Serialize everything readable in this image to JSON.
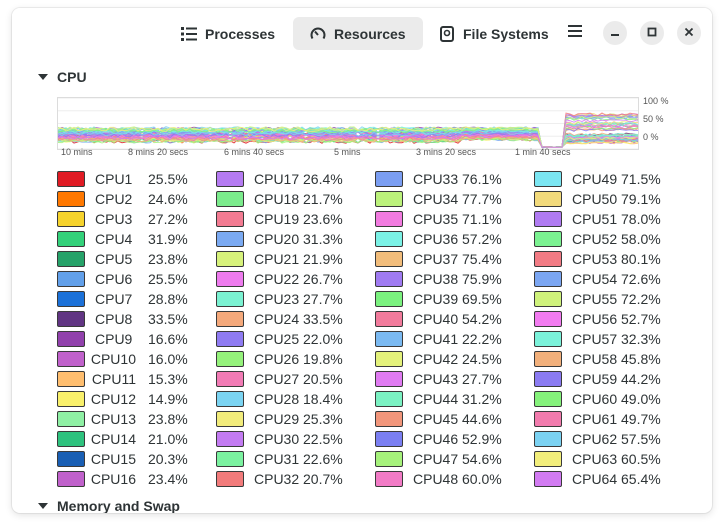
{
  "header": {
    "tabs": [
      {
        "label": "Processes",
        "icon": "list-icon"
      },
      {
        "label": "Resources",
        "icon": "speedometer-icon",
        "active": true
      },
      {
        "label": "File Systems",
        "icon": "disk-icon"
      }
    ],
    "menu_icon": "hamburger-menu-icon",
    "window_buttons": [
      "minimize-icon",
      "maximize-icon",
      "close-icon"
    ]
  },
  "cpu_section": {
    "title": "CPU",
    "y_ticks": [
      "100 %",
      "50 %",
      "0 %"
    ],
    "x_ticks": [
      "10 mins",
      "8 mins 20 secs",
      "6 mins 40 secs",
      "5 mins",
      "3 mins 20 secs",
      "1 min 40 secs"
    ],
    "cpus": [
      {
        "name": "CPU1",
        "value": "25.5%",
        "color": "#e01b24"
      },
      {
        "name": "CPU2",
        "value": "24.6%",
        "color": "#ff7800"
      },
      {
        "name": "CPU3",
        "value": "27.2%",
        "color": "#f6d32d"
      },
      {
        "name": "CPU4",
        "value": "31.9%",
        "color": "#33d17a"
      },
      {
        "name": "CPU5",
        "value": "23.8%",
        "color": "#26a269"
      },
      {
        "name": "CPU6",
        "value": "25.5%",
        "color": "#62a0ea"
      },
      {
        "name": "CPU7",
        "value": "28.8%",
        "color": "#1c71d8"
      },
      {
        "name": "CPU8",
        "value": "33.5%",
        "color": "#613583"
      },
      {
        "name": "CPU9",
        "value": "16.6%",
        "color": "#9141ac"
      },
      {
        "name": "CPU10",
        "value": "16.0%",
        "color": "#c061cb"
      },
      {
        "name": "CPU11",
        "value": "15.3%",
        "color": "#ffbe6f"
      },
      {
        "name": "CPU12",
        "value": "14.9%",
        "color": "#f9f06b"
      },
      {
        "name": "CPU13",
        "value": "23.8%",
        "color": "#8ff0a4"
      },
      {
        "name": "CPU14",
        "value": "21.0%",
        "color": "#2ec27e"
      },
      {
        "name": "CPU15",
        "value": "20.3%",
        "color": "#1a5fb4"
      },
      {
        "name": "CPU16",
        "value": "23.4%",
        "color": "#c061cb"
      },
      {
        "name": "CPU17",
        "value": "26.4%",
        "color": "#b57bf2"
      },
      {
        "name": "CPU18",
        "value": "21.7%",
        "color": "#7beb8c"
      },
      {
        "name": "CPU19",
        "value": "23.6%",
        "color": "#f37b92"
      },
      {
        "name": "CPU20",
        "value": "31.3%",
        "color": "#7baaf2"
      },
      {
        "name": "CPU21",
        "value": "21.9%",
        "color": "#d7f27b"
      },
      {
        "name": "CPU22",
        "value": "26.7%",
        "color": "#ee7bee"
      },
      {
        "name": "CPU23",
        "value": "27.7%",
        "color": "#7bf2d2"
      },
      {
        "name": "CPU24",
        "value": "33.5%",
        "color": "#f5a97b"
      },
      {
        "name": "CPU25",
        "value": "22.0%",
        "color": "#8f7bf2"
      },
      {
        "name": "CPU26",
        "value": "19.8%",
        "color": "#95f27b"
      },
      {
        "name": "CPU27",
        "value": "20.5%",
        "color": "#f27bb5"
      },
      {
        "name": "CPU28",
        "value": "18.4%",
        "color": "#7bd4f2"
      },
      {
        "name": "CPU29",
        "value": "25.3%",
        "color": "#f2ec7b"
      },
      {
        "name": "CPU30",
        "value": "22.5%",
        "color": "#c37bf2"
      },
      {
        "name": "CPU31",
        "value": "22.6%",
        "color": "#7bf2a0"
      },
      {
        "name": "CPU32",
        "value": "20.7%",
        "color": "#f27b7b"
      },
      {
        "name": "CPU33",
        "value": "76.1%",
        "color": "#7b9ef2"
      },
      {
        "name": "CPU34",
        "value": "77.7%",
        "color": "#bcf27b"
      },
      {
        "name": "CPU35",
        "value": "71.1%",
        "color": "#f27be0"
      },
      {
        "name": "CPU36",
        "value": "57.2%",
        "color": "#7bf2e6"
      },
      {
        "name": "CPU37",
        "value": "75.4%",
        "color": "#f2bd7b"
      },
      {
        "name": "CPU38",
        "value": "75.9%",
        "color": "#a07bf2"
      },
      {
        "name": "CPU39",
        "value": "69.5%",
        "color": "#7bf27f"
      },
      {
        "name": "CPU40",
        "value": "54.2%",
        "color": "#f27b9c"
      },
      {
        "name": "CPU41",
        "value": "22.2%",
        "color": "#7bbaf2"
      },
      {
        "name": "CPU42",
        "value": "24.5%",
        "color": "#e4f27b"
      },
      {
        "name": "CPU43",
        "value": "27.7%",
        "color": "#e07bf2"
      },
      {
        "name": "CPU44",
        "value": "31.2%",
        "color": "#7bf2c3"
      },
      {
        "name": "CPU45",
        "value": "44.6%",
        "color": "#f2967b"
      },
      {
        "name": "CPU46",
        "value": "52.9%",
        "color": "#7b7ff2"
      },
      {
        "name": "CPU47",
        "value": "54.6%",
        "color": "#a6f27b"
      },
      {
        "name": "CPU48",
        "value": "60.0%",
        "color": "#f27bc6"
      },
      {
        "name": "CPU49",
        "value": "71.5%",
        "color": "#7be6f2"
      },
      {
        "name": "CPU50",
        "value": "79.1%",
        "color": "#f2da7b"
      },
      {
        "name": "CPU51",
        "value": "78.0%",
        "color": "#b07bf2"
      },
      {
        "name": "CPU52",
        "value": "58.0%",
        "color": "#7bf291"
      },
      {
        "name": "CPU53",
        "value": "80.1%",
        "color": "#f27b84"
      },
      {
        "name": "CPU54",
        "value": "72.6%",
        "color": "#7ba6f2"
      },
      {
        "name": "CPU55",
        "value": "72.2%",
        "color": "#cff27b"
      },
      {
        "name": "CPU56",
        "value": "52.7%",
        "color": "#f27bf0"
      },
      {
        "name": "CPU57",
        "value": "32.3%",
        "color": "#7bf2da"
      },
      {
        "name": "CPU58",
        "value": "45.8%",
        "color": "#f2b07b"
      },
      {
        "name": "CPU59",
        "value": "44.2%",
        "color": "#8b7bf2"
      },
      {
        "name": "CPU60",
        "value": "49.0%",
        "color": "#85f27b"
      },
      {
        "name": "CPU61",
        "value": "49.7%",
        "color": "#f27bad"
      },
      {
        "name": "CPU62",
        "value": "57.5%",
        "color": "#7bd2f2"
      },
      {
        "name": "CPU63",
        "value": "60.5%",
        "color": "#f2ee7b"
      },
      {
        "name": "CPU64",
        "value": "65.4%",
        "color": "#d27bf2"
      }
    ]
  },
  "memory_section": {
    "title": "Memory and Swap"
  }
}
